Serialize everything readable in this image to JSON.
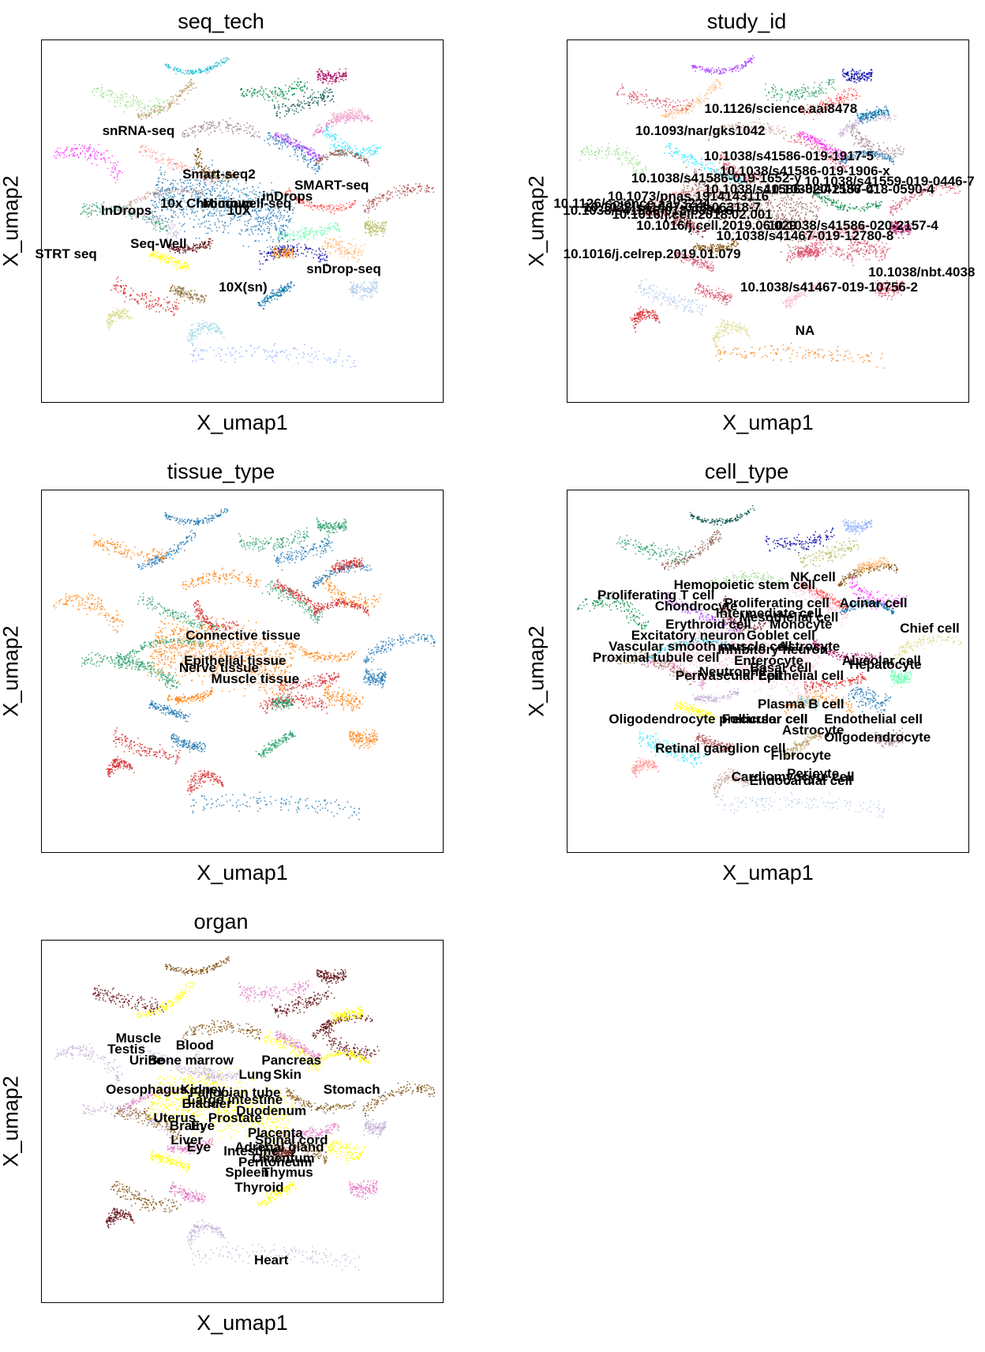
{
  "chart_data": [
    {
      "type": "scatter",
      "title": "seq_tech",
      "xlabel": "X_umap1",
      "ylabel": "X_umap2",
      "legend": "on data",
      "grid": false,
      "labels": [
        {
          "text": "snRNA-seq",
          "x": 0.24,
          "y": 0.25
        },
        {
          "text": "Smart-seq2",
          "x": 0.44,
          "y": 0.37
        },
        {
          "text": "SMART-seq",
          "x": 0.72,
          "y": 0.4
        },
        {
          "text": "inDrops",
          "x": 0.61,
          "y": 0.43
        },
        {
          "text": "10x Chromium",
          "x": 0.41,
          "y": 0.45
        },
        {
          "text": "Microwell-seq",
          "x": 0.51,
          "y": 0.45
        },
        {
          "text": "10X",
          "x": 0.49,
          "y": 0.47
        },
        {
          "text": "InDrops",
          "x": 0.21,
          "y": 0.47
        },
        {
          "text": "Seq-Well",
          "x": 0.29,
          "y": 0.56
        },
        {
          "text": "STRT seq",
          "x": 0.06,
          "y": 0.59
        },
        {
          "text": "snDrop-seq",
          "x": 0.75,
          "y": 0.63
        },
        {
          "text": "10X(sn)",
          "x": 0.5,
          "y": 0.68
        }
      ]
    },
    {
      "type": "scatter",
      "title": "study_id",
      "xlabel": "X_umap1",
      "ylabel": "X_umap2",
      "legend": "on data",
      "grid": false,
      "labels": [
        {
          "text": "10.1126/science.aai8478",
          "x": 0.53,
          "y": 0.19
        },
        {
          "text": "10.1093/nar/gks1042",
          "x": 0.33,
          "y": 0.25
        },
        {
          "text": "10.1038/s41586-019-1917-5",
          "x": 0.55,
          "y": 0.32
        },
        {
          "text": "10.1038/s41586-019-1906-x",
          "x": 0.59,
          "y": 0.36
        },
        {
          "text": "10.1038/s41586-019-1652-y",
          "x": 0.37,
          "y": 0.38
        },
        {
          "text": "10.1038/s41559-019-0446-7",
          "x": 0.8,
          "y": 0.39
        },
        {
          "text": "10.1038/s41586-020-2157-4",
          "x": 0.55,
          "y": 0.41
        },
        {
          "text": "10.1073/pnas.1914143116",
          "x": 0.3,
          "y": 0.43
        },
        {
          "text": "10.1016/j.cell.2018.02.001",
          "x": 0.31,
          "y": 0.48
        },
        {
          "text": "10.1038/s41586-018-0590-4",
          "x": 0.7,
          "y": 0.41
        },
        {
          "text": "10.1126/science.aay3224",
          "x": 0.16,
          "y": 0.45
        },
        {
          "text": "10.1038/s41467-018-06318-7",
          "x": 0.26,
          "y": 0.46
        },
        {
          "text": "10.1038/s41586-018-0394-6",
          "x": 0.2,
          "y": 0.47
        },
        {
          "text": "10.1016/j.cell.2019.06.029",
          "x": 0.37,
          "y": 0.51
        },
        {
          "text": "10.1038/s41586-020-2157-4",
          "x": 0.71,
          "y": 0.51
        },
        {
          "text": "10.1038/s41467-019-12780-8",
          "x": 0.59,
          "y": 0.54
        },
        {
          "text": "10.1016/j.celrep.2019.01.079",
          "x": 0.21,
          "y": 0.59
        },
        {
          "text": "10.1038/nbt.4038",
          "x": 0.88,
          "y": 0.64
        },
        {
          "text": "10.1038/s41467-019-10756-2",
          "x": 0.65,
          "y": 0.68
        },
        {
          "text": "NA",
          "x": 0.59,
          "y": 0.8
        }
      ]
    },
    {
      "type": "scatter",
      "title": "tissue_type",
      "xlabel": "X_umap1",
      "ylabel": "X_umap2",
      "legend": "on data",
      "grid": false,
      "labels": [
        {
          "text": "Connective tissue",
          "x": 0.5,
          "y": 0.4
        },
        {
          "text": "Epithelial tissue",
          "x": 0.48,
          "y": 0.47
        },
        {
          "text": "Nerve tissue",
          "x": 0.44,
          "y": 0.49
        },
        {
          "text": "Muscle tissue",
          "x": 0.53,
          "y": 0.52
        }
      ]
    },
    {
      "type": "scatter",
      "title": "cell_type",
      "xlabel": "X_umap1",
      "ylabel": "X_umap2",
      "legend": "on data",
      "grid": false,
      "labels": [
        {
          "text": "NK cell",
          "x": 0.61,
          "y": 0.24
        },
        {
          "text": "Hemopoietic stem cell",
          "x": 0.44,
          "y": 0.26
        },
        {
          "text": "Proliferating T cell",
          "x": 0.22,
          "y": 0.29
        },
        {
          "text": "Proliferating cell",
          "x": 0.52,
          "y": 0.31
        },
        {
          "text": "Chondrocyte",
          "x": 0.32,
          "y": 0.32
        },
        {
          "text": "Acinar cell",
          "x": 0.76,
          "y": 0.31
        },
        {
          "text": "Intermediate cell",
          "x": 0.5,
          "y": 0.34
        },
        {
          "text": "Mesothelial cell",
          "x": 0.55,
          "y": 0.35
        },
        {
          "text": "Erythroid cell",
          "x": 0.35,
          "y": 0.37
        },
        {
          "text": "Monocyte",
          "x": 0.58,
          "y": 0.37
        },
        {
          "text": "Chief cell",
          "x": 0.9,
          "y": 0.38
        },
        {
          "text": "Excitatory neuron",
          "x": 0.3,
          "y": 0.4
        },
        {
          "text": "Goblet cell",
          "x": 0.53,
          "y": 0.4
        },
        {
          "text": "Astrocyte",
          "x": 0.6,
          "y": 0.43
        },
        {
          "text": "Vascular smooth muscle cell",
          "x": 0.33,
          "y": 0.43
        },
        {
          "text": "Inhibitory neuron",
          "x": 0.51,
          "y": 0.44
        },
        {
          "text": "Proximal tubule cell",
          "x": 0.22,
          "y": 0.46
        },
        {
          "text": "Enterocyte",
          "x": 0.5,
          "y": 0.47
        },
        {
          "text": "Alveolar cell",
          "x": 0.78,
          "y": 0.47
        },
        {
          "text": "Hepatocyte",
          "x": 0.79,
          "y": 0.48
        },
        {
          "text": "Basal cell",
          "x": 0.53,
          "y": 0.49
        },
        {
          "text": "Neutrophil",
          "x": 0.41,
          "y": 0.5
        },
        {
          "text": "Perivascular cell",
          "x": 0.4,
          "y": 0.51
        },
        {
          "text": "Epithelial cell",
          "x": 0.58,
          "y": 0.51
        },
        {
          "text": "Plasma B cell",
          "x": 0.58,
          "y": 0.59
        },
        {
          "text": "Oligodendrocyte precursor cell",
          "x": 0.35,
          "y": 0.63
        },
        {
          "text": "Follicular cell",
          "x": 0.49,
          "y": 0.63
        },
        {
          "text": "Endothelial cell",
          "x": 0.76,
          "y": 0.63
        },
        {
          "text": "Astrocyte",
          "x": 0.61,
          "y": 0.66
        },
        {
          "text": "Oligodendrocyte",
          "x": 0.77,
          "y": 0.68
        },
        {
          "text": "Retinal ganglion cell",
          "x": 0.38,
          "y": 0.71
        },
        {
          "text": "Fibrocyte",
          "x": 0.58,
          "y": 0.73
        },
        {
          "text": "Pericyte",
          "x": 0.61,
          "y": 0.78
        },
        {
          "text": "Cardiomyocyte cell",
          "x": 0.56,
          "y": 0.79
        },
        {
          "text": "Endocardial cell",
          "x": 0.58,
          "y": 0.8
        }
      ]
    },
    {
      "type": "scatter",
      "title": "organ",
      "xlabel": "X_umap1",
      "ylabel": "X_umap2",
      "legend": "on data",
      "grid": false,
      "labels": [
        {
          "text": "Muscle",
          "x": 0.24,
          "y": 0.27
        },
        {
          "text": "Blood",
          "x": 0.38,
          "y": 0.29
        },
        {
          "text": "Testis",
          "x": 0.21,
          "y": 0.3
        },
        {
          "text": "Urine",
          "x": 0.26,
          "y": 0.33
        },
        {
          "text": "Bone marrow",
          "x": 0.37,
          "y": 0.33
        },
        {
          "text": "Pancreas",
          "x": 0.62,
          "y": 0.33
        },
        {
          "text": "Lung",
          "x": 0.53,
          "y": 0.37
        },
        {
          "text": "Skin",
          "x": 0.61,
          "y": 0.37
        },
        {
          "text": "Oesophagus",
          "x": 0.26,
          "y": 0.41
        },
        {
          "text": "Kidney",
          "x": 0.4,
          "y": 0.41
        },
        {
          "text": "Fallopian tube",
          "x": 0.48,
          "y": 0.42
        },
        {
          "text": "Stomach",
          "x": 0.77,
          "y": 0.41
        },
        {
          "text": "Large intestine",
          "x": 0.48,
          "y": 0.44
        },
        {
          "text": "Bladder",
          "x": 0.41,
          "y": 0.45
        },
        {
          "text": "Duodenum",
          "x": 0.57,
          "y": 0.47
        },
        {
          "text": "Uterus",
          "x": 0.33,
          "y": 0.49
        },
        {
          "text": "Prostate",
          "x": 0.48,
          "y": 0.49
        },
        {
          "text": "Brain",
          "x": 0.36,
          "y": 0.51
        },
        {
          "text": "Eye",
          "x": 0.4,
          "y": 0.51
        },
        {
          "text": "Placenta",
          "x": 0.58,
          "y": 0.53
        },
        {
          "text": "Liver",
          "x": 0.36,
          "y": 0.55
        },
        {
          "text": "Spinal cord",
          "x": 0.62,
          "y": 0.55
        },
        {
          "text": "Adrenal gland",
          "x": 0.59,
          "y": 0.57
        },
        {
          "text": "Eye",
          "x": 0.39,
          "y": 0.57
        },
        {
          "text": "Intestine",
          "x": 0.52,
          "y": 0.58
        },
        {
          "text": "Peritoneum",
          "x": 0.58,
          "y": 0.61
        },
        {
          "text": "Omentum",
          "x": 0.6,
          "y": 0.6
        },
        {
          "text": "Spleen",
          "x": 0.51,
          "y": 0.64
        },
        {
          "text": "Thymus",
          "x": 0.61,
          "y": 0.64
        },
        {
          "text": "Thyroid",
          "x": 0.54,
          "y": 0.68
        },
        {
          "text": "Heart",
          "x": 0.57,
          "y": 0.88
        }
      ]
    }
  ],
  "colors": {
    "palette": [
      "#1f77b4",
      "#ff7f0e",
      "#279e68",
      "#d62728",
      "#aa40fc",
      "#8c564b",
      "#e377c2",
      "#b5bd61",
      "#17becf",
      "#aec7e8",
      "#ffbb78",
      "#98df8a",
      "#ff9896",
      "#c5b0d5",
      "#c49c94",
      "#f7b6d2",
      "#dbdb8d",
      "#9edae5",
      "#ad494a",
      "#8c6d31",
      "#ffff00",
      "#1ce6ff",
      "#ff34ff",
      "#ff4a46",
      "#008941",
      "#006fa6",
      "#a30059",
      "#7a4900",
      "#0000a6",
      "#63ffac",
      "#b79762",
      "#004d43",
      "#8fb0ff",
      "#997d87",
      "#5a0007"
    ]
  }
}
